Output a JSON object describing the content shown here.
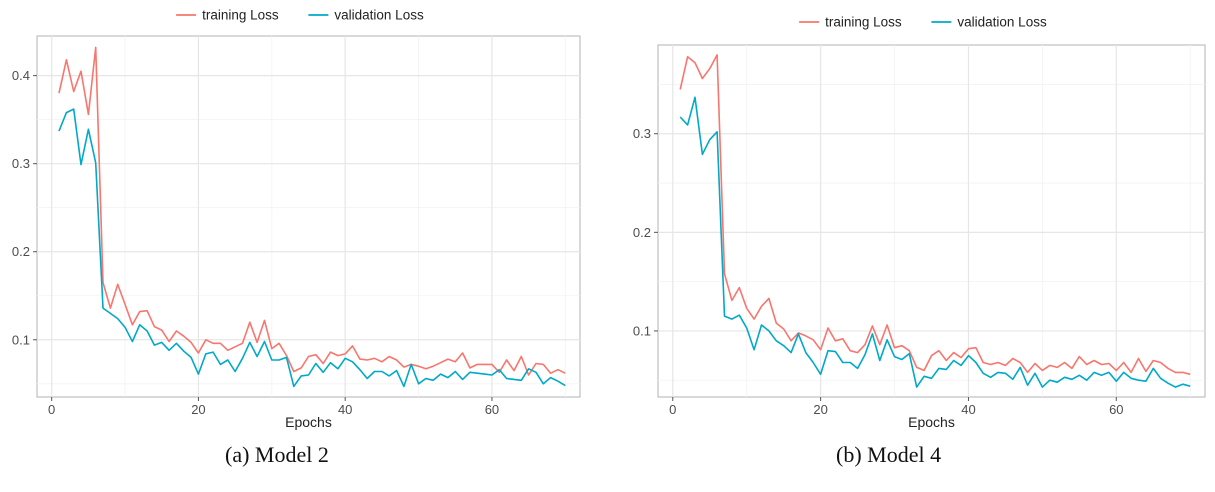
{
  "colors": {
    "training": "#F8766D",
    "validation": "#00A9C9",
    "grid": "#e6e6e6",
    "axis_text": "#4d4d4d"
  },
  "chart_data": [
    {
      "type": "line",
      "xlabel": "Epochs",
      "ylabel": "",
      "xlim": [
        -2,
        72
      ],
      "ylim": [
        0.035,
        0.445
      ],
      "xticks": [
        0,
        20,
        40,
        60
      ],
      "yticks": [
        0.1,
        0.2,
        0.3,
        0.4
      ],
      "grid": true,
      "legend": "top",
      "series": [
        {
          "name": "training Loss",
          "x": [
            1,
            2,
            3,
            4,
            5,
            6,
            7,
            8,
            9,
            10,
            11,
            12,
            13,
            14,
            15,
            16,
            17,
            18,
            19,
            20,
            21,
            22,
            23,
            24,
            25,
            26,
            27,
            28,
            29,
            30,
            31,
            32,
            33,
            34,
            35,
            36,
            37,
            38,
            39,
            40,
            41,
            42,
            43,
            44,
            45,
            46,
            47,
            48,
            49,
            50,
            51,
            52,
            53,
            54,
            55,
            56,
            57,
            58,
            59,
            60,
            61,
            62,
            63,
            64,
            65,
            66,
            67,
            68,
            69,
            70
          ],
          "values": [
            0.38,
            0.418,
            0.382,
            0.405,
            0.356,
            0.432,
            0.165,
            0.136,
            0.163,
            0.14,
            0.117,
            0.132,
            0.133,
            0.115,
            0.111,
            0.098,
            0.11,
            0.104,
            0.097,
            0.085,
            0.1,
            0.096,
            0.096,
            0.088,
            0.092,
            0.096,
            0.12,
            0.097,
            0.122,
            0.09,
            0.096,
            0.082,
            0.064,
            0.068,
            0.081,
            0.083,
            0.073,
            0.086,
            0.082,
            0.084,
            0.093,
            0.078,
            0.077,
            0.079,
            0.075,
            0.081,
            0.077,
            0.069,
            0.072,
            0.07,
            0.067,
            0.07,
            0.074,
            0.078,
            0.075,
            0.085,
            0.068,
            0.072,
            0.072,
            0.072,
            0.063,
            0.077,
            0.065,
            0.081,
            0.06,
            0.073,
            0.072,
            0.062,
            0.066,
            0.062
          ]
        },
        {
          "name": "validation Loss",
          "x": [
            1,
            2,
            3,
            4,
            5,
            6,
            7,
            8,
            9,
            10,
            11,
            12,
            13,
            14,
            15,
            16,
            17,
            18,
            19,
            20,
            21,
            22,
            23,
            24,
            25,
            26,
            27,
            28,
            29,
            30,
            31,
            32,
            33,
            34,
            35,
            36,
            37,
            38,
            39,
            40,
            41,
            42,
            43,
            44,
            45,
            46,
            47,
            48,
            49,
            50,
            51,
            52,
            53,
            54,
            55,
            56,
            57,
            58,
            59,
            60,
            61,
            62,
            63,
            64,
            65,
            66,
            67,
            68,
            69,
            70
          ],
          "values": [
            0.337,
            0.358,
            0.362,
            0.299,
            0.339,
            0.301,
            0.136,
            0.13,
            0.124,
            0.114,
            0.098,
            0.117,
            0.11,
            0.094,
            0.097,
            0.088,
            0.096,
            0.087,
            0.08,
            0.061,
            0.084,
            0.086,
            0.072,
            0.077,
            0.064,
            0.079,
            0.097,
            0.081,
            0.098,
            0.077,
            0.077,
            0.08,
            0.047,
            0.059,
            0.06,
            0.073,
            0.063,
            0.074,
            0.067,
            0.079,
            0.075,
            0.066,
            0.056,
            0.064,
            0.064,
            0.059,
            0.065,
            0.047,
            0.072,
            0.05,
            0.056,
            0.054,
            0.061,
            0.057,
            0.064,
            0.055,
            0.063,
            0.062,
            0.061,
            0.06,
            0.066,
            0.056,
            0.055,
            0.054,
            0.067,
            0.063,
            0.05,
            0.057,
            0.053,
            0.048
          ]
        }
      ]
    },
    {
      "type": "line",
      "xlabel": "Epochs",
      "ylabel": "",
      "xlim": [
        -2,
        72
      ],
      "ylim": [
        0.033,
        0.39
      ],
      "xticks": [
        0,
        20,
        40,
        60
      ],
      "yticks": [
        0.1,
        0.2,
        0.3
      ],
      "grid": true,
      "legend": "top",
      "series": [
        {
          "name": "training Loss",
          "x": [
            1,
            2,
            3,
            4,
            5,
            6,
            7,
            8,
            9,
            10,
            11,
            12,
            13,
            14,
            15,
            16,
            17,
            18,
            19,
            20,
            21,
            22,
            23,
            24,
            25,
            26,
            27,
            28,
            29,
            30,
            31,
            32,
            33,
            34,
            35,
            36,
            37,
            38,
            39,
            40,
            41,
            42,
            43,
            44,
            45,
            46,
            47,
            48,
            49,
            50,
            51,
            52,
            53,
            54,
            55,
            56,
            57,
            58,
            59,
            60,
            61,
            62,
            63,
            64,
            65,
            66,
            67,
            68,
            69,
            70
          ],
          "values": [
            0.345,
            0.378,
            0.372,
            0.356,
            0.366,
            0.38,
            0.158,
            0.131,
            0.144,
            0.123,
            0.112,
            0.125,
            0.133,
            0.108,
            0.102,
            0.09,
            0.098,
            0.095,
            0.091,
            0.081,
            0.103,
            0.09,
            0.092,
            0.08,
            0.078,
            0.086,
            0.105,
            0.086,
            0.106,
            0.083,
            0.085,
            0.08,
            0.063,
            0.06,
            0.075,
            0.08,
            0.07,
            0.078,
            0.073,
            0.082,
            0.083,
            0.068,
            0.066,
            0.068,
            0.065,
            0.072,
            0.068,
            0.058,
            0.067,
            0.06,
            0.065,
            0.063,
            0.068,
            0.062,
            0.074,
            0.066,
            0.07,
            0.066,
            0.067,
            0.06,
            0.068,
            0.058,
            0.072,
            0.059,
            0.07,
            0.068,
            0.062,
            0.058,
            0.058,
            0.056
          ]
        },
        {
          "name": "validation Loss",
          "x": [
            1,
            2,
            3,
            4,
            5,
            6,
            7,
            8,
            9,
            10,
            11,
            12,
            13,
            14,
            15,
            16,
            17,
            18,
            19,
            20,
            21,
            22,
            23,
            24,
            25,
            26,
            27,
            28,
            29,
            30,
            31,
            32,
            33,
            34,
            35,
            36,
            37,
            38,
            39,
            40,
            41,
            42,
            43,
            44,
            45,
            46,
            47,
            48,
            49,
            50,
            51,
            52,
            53,
            54,
            55,
            56,
            57,
            58,
            59,
            60,
            61,
            62,
            63,
            64,
            65,
            66,
            67,
            68,
            69,
            70
          ],
          "values": [
            0.317,
            0.309,
            0.337,
            0.279,
            0.294,
            0.302,
            0.115,
            0.112,
            0.116,
            0.103,
            0.081,
            0.106,
            0.1,
            0.09,
            0.085,
            0.078,
            0.097,
            0.078,
            0.068,
            0.056,
            0.08,
            0.079,
            0.068,
            0.068,
            0.062,
            0.076,
            0.097,
            0.07,
            0.091,
            0.074,
            0.071,
            0.077,
            0.043,
            0.054,
            0.052,
            0.062,
            0.061,
            0.07,
            0.065,
            0.075,
            0.068,
            0.057,
            0.053,
            0.058,
            0.057,
            0.051,
            0.063,
            0.045,
            0.057,
            0.043,
            0.05,
            0.048,
            0.053,
            0.051,
            0.055,
            0.05,
            0.058,
            0.055,
            0.058,
            0.049,
            0.058,
            0.052,
            0.05,
            0.049,
            0.062,
            0.052,
            0.047,
            0.043,
            0.046,
            0.044
          ]
        }
      ]
    }
  ],
  "captions": [
    "(a) Model 2",
    "(b) Model 4"
  ]
}
